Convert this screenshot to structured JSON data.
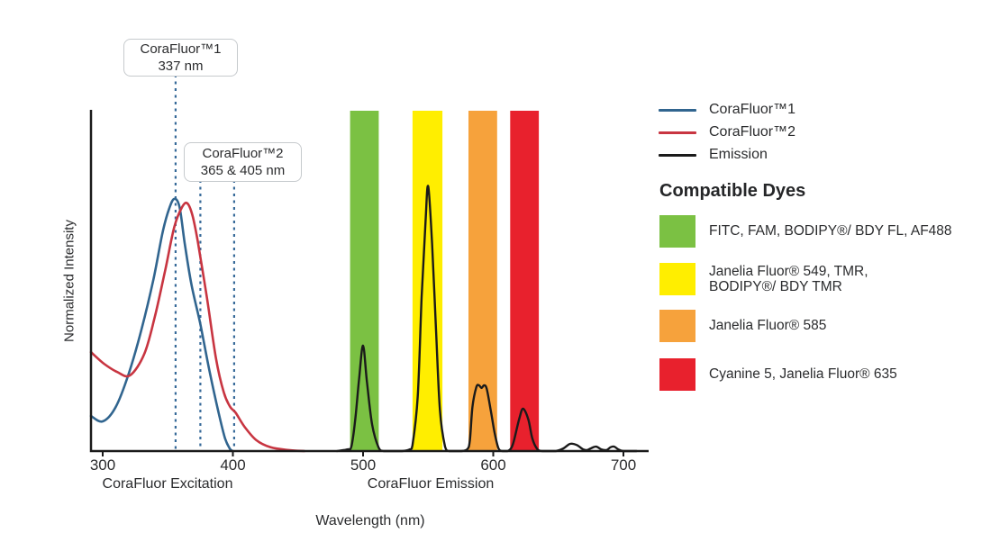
{
  "chart": {
    "y_axis_label": "Normalized Intensity",
    "x_axis_label": "Wavelength (nm)",
    "x_ticks": [
      "300",
      "400",
      "500",
      "600",
      "700"
    ],
    "excitation_group_label": "CoraFluor Excitation",
    "emission_group_label": "CoraFluor Emission",
    "callouts": [
      {
        "line1": "CoraFluor™1",
        "line2": "337 nm"
      },
      {
        "line1": "CoraFluor™2",
        "line2": "365 & 405 nm"
      }
    ]
  },
  "legend": {
    "series": [
      {
        "label": "CoraFluor™1",
        "color": "#31658f"
      },
      {
        "label": "CoraFluor™2",
        "color": "#c83541"
      },
      {
        "label": "Emission",
        "color": "#1a1a1a"
      }
    ],
    "heading": "Compatible Dyes",
    "dyes": [
      {
        "color": "#7bc143",
        "lines": [
          "FITC, FAM, BODIPY®/ BDY FL, AF488"
        ]
      },
      {
        "color": "#ffee00",
        "lines": [
          "Janelia Fluor® 549, TMR,",
          "BODIPY®/ BDY TMR"
        ]
      },
      {
        "color": "#f6a23c",
        "lines": [
          "Janelia Fluor® 585"
        ]
      },
      {
        "color": "#e8212d",
        "lines": [
          "Cyanine 5, Janelia Fluor® 635"
        ]
      }
    ]
  },
  "chart_data": {
    "type": "line",
    "title": "",
    "xlabel": "Wavelength (nm)",
    "ylabel": "Normalized Intensity",
    "xlim": [
      291,
      720
    ],
    "ylim": [
      0,
      1
    ],
    "x_ticks_nm": [
      300,
      400,
      500,
      600,
      700
    ],
    "grid": false,
    "callout_values_nm": [
      337,
      365,
      405
    ],
    "dashed_lines_nm": [
      356,
      375,
      401
    ],
    "bands": [
      {
        "name": "FITC, FAM, BODIPY®/ BDY FL, AF488",
        "color": "#7bc143",
        "nm": [
          490,
          512
        ]
      },
      {
        "name": "Janelia Fluor® 549, TMR, BODIPY®/ BDY TMR",
        "color": "#ffee00",
        "nm": [
          538,
          561
        ]
      },
      {
        "name": "Janelia Fluor® 585",
        "color": "#f6a23c",
        "nm": [
          581,
          603
        ]
      },
      {
        "name": "Cyanine 5, Janelia Fluor® 635",
        "color": "#e8212d",
        "nm": [
          613,
          635
        ]
      }
    ],
    "series": [
      {
        "name": "CoraFluor™1",
        "color": "#31658f",
        "width": 2.6,
        "points": [
          [
            291,
            0.103
          ],
          [
            300,
            0.087
          ],
          [
            310,
            0.129
          ],
          [
            320,
            0.227
          ],
          [
            330,
            0.359
          ],
          [
            339,
            0.504
          ],
          [
            346,
            0.641
          ],
          [
            351,
            0.71
          ],
          [
            355,
            0.739
          ],
          [
            359,
            0.715
          ],
          [
            363,
            0.609
          ],
          [
            368,
            0.491
          ],
          [
            375,
            0.372
          ],
          [
            382,
            0.235
          ],
          [
            389,
            0.113
          ],
          [
            394,
            0.037
          ],
          [
            398,
            0.005
          ],
          [
            400,
            0
          ]
        ]
      },
      {
        "name": "CoraFluor™2",
        "color": "#c83541",
        "width": 2.6,
        "points": [
          [
            291,
            0.29
          ],
          [
            301,
            0.256
          ],
          [
            311,
            0.232
          ],
          [
            321,
            0.222
          ],
          [
            332,
            0.285
          ],
          [
            340,
            0.393
          ],
          [
            348,
            0.53
          ],
          [
            355,
            0.657
          ],
          [
            361,
            0.715
          ],
          [
            365,
            0.726
          ],
          [
            369,
            0.69
          ],
          [
            373,
            0.615
          ],
          [
            380,
            0.451
          ],
          [
            387,
            0.272
          ],
          [
            393,
            0.172
          ],
          [
            398,
            0.129
          ],
          [
            402,
            0.113
          ],
          [
            409,
            0.071
          ],
          [
            418,
            0.032
          ],
          [
            429,
            0.011
          ],
          [
            443,
            0.003
          ],
          [
            455,
            0
          ]
        ]
      },
      {
        "name": "Emission",
        "color": "#1a1a1a",
        "width": 2.4,
        "points": [
          [
            480,
            0
          ],
          [
            488,
            0.005
          ],
          [
            491,
            0.013
          ],
          [
            494,
            0.092
          ],
          [
            497,
            0.214
          ],
          [
            500,
            0.309
          ],
          [
            503,
            0.203
          ],
          [
            507,
            0.077
          ],
          [
            512,
            0.01
          ],
          [
            516,
            0
          ],
          [
            530,
            0
          ],
          [
            536,
            0.005
          ],
          [
            538,
            0.018
          ],
          [
            542,
            0.161
          ],
          [
            545,
            0.451
          ],
          [
            548,
            0.675
          ],
          [
            550,
            0.776
          ],
          [
            553,
            0.609
          ],
          [
            556,
            0.359
          ],
          [
            559,
            0.121
          ],
          [
            563,
            0.013
          ],
          [
            566,
            0
          ],
          [
            575,
            0
          ],
          [
            580,
            0.005
          ],
          [
            582,
            0.03
          ],
          [
            584,
            0.129
          ],
          [
            587,
            0.187
          ],
          [
            589,
            0.193
          ],
          [
            591,
            0.185
          ],
          [
            593,
            0.193
          ],
          [
            595,
            0.182
          ],
          [
            598,
            0.121
          ],
          [
            601,
            0.055
          ],
          [
            604,
            0.008
          ],
          [
            607,
            0
          ],
          [
            611,
            0
          ],
          [
            614,
            0.01
          ],
          [
            616,
            0.032
          ],
          [
            620,
            0.095
          ],
          [
            623,
            0.124
          ],
          [
            627,
            0.092
          ],
          [
            630,
            0.037
          ],
          [
            634,
            0.005
          ],
          [
            638,
            0
          ],
          [
            648,
            0
          ],
          [
            654,
            0.008
          ],
          [
            659,
            0.021
          ],
          [
            664,
            0.018
          ],
          [
            669,
            0.005
          ],
          [
            672,
            0.003
          ],
          [
            675,
            0.008
          ],
          [
            679,
            0.013
          ],
          [
            683,
            0.005
          ],
          [
            687,
            0.003
          ],
          [
            690,
            0.011
          ],
          [
            693,
            0.013
          ],
          [
            696,
            0.005
          ],
          [
            700,
            0
          ],
          [
            710,
            0
          ]
        ]
      }
    ]
  }
}
